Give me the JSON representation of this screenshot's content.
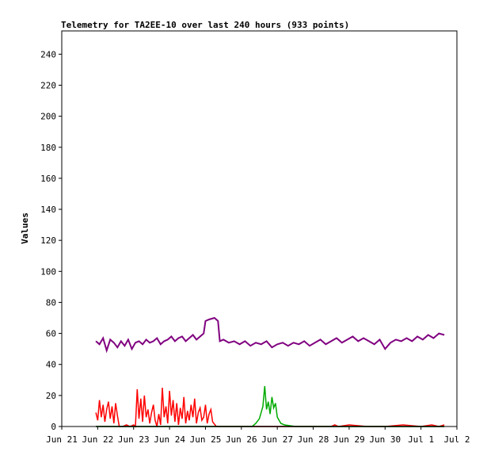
{
  "chart_data": {
    "type": "line",
    "title": "Telemetry for TA2EE-10 over last 240 hours (933 points)",
    "xlabel": "",
    "ylabel": "Values",
    "xlim": [
      0,
      11
    ],
    "ylim": [
      0,
      255
    ],
    "grid": false,
    "legend": "none",
    "x_ticks": [
      {
        "x": 0,
        "label": "Jun 21"
      },
      {
        "x": 1,
        "label": "Jun 22"
      },
      {
        "x": 2,
        "label": "Jun 23"
      },
      {
        "x": 3,
        "label": "Jun 24"
      },
      {
        "x": 4,
        "label": "Jun 25"
      },
      {
        "x": 5,
        "label": "Jun 26"
      },
      {
        "x": 6,
        "label": "Jun 27"
      },
      {
        "x": 7,
        "label": "Jun 28"
      },
      {
        "x": 8,
        "label": "Jun 29"
      },
      {
        "x": 9,
        "label": "Jun 30"
      },
      {
        "x": 10,
        "label": "Jul 1"
      },
      {
        "x": 11,
        "label": "Jul 2"
      }
    ],
    "y_ticks": [
      0,
      20,
      40,
      60,
      80,
      100,
      120,
      140,
      160,
      180,
      200,
      220,
      240
    ],
    "series": [
      {
        "color": "#800080",
        "x": [
          0.95,
          1.05,
          1.15,
          1.25,
          1.35,
          1.45,
          1.55,
          1.65,
          1.75,
          1.85,
          1.95,
          2.05,
          2.15,
          2.25,
          2.35,
          2.45,
          2.55,
          2.65,
          2.75,
          2.85,
          2.95,
          3.05,
          3.15,
          3.25,
          3.35,
          3.45,
          3.55,
          3.65,
          3.75,
          3.85,
          3.95,
          4.0,
          4.1,
          4.25,
          4.35,
          4.4,
          4.5,
          4.65,
          4.8,
          4.95,
          5.1,
          5.25,
          5.4,
          5.55,
          5.7,
          5.85,
          6.0,
          6.15,
          6.3,
          6.45,
          6.6,
          6.75,
          6.9,
          7.05,
          7.2,
          7.35,
          7.5,
          7.65,
          7.8,
          7.95,
          8.1,
          8.25,
          8.4,
          8.55,
          8.7,
          8.85,
          9.0,
          9.15,
          9.3,
          9.45,
          9.6,
          9.75,
          9.9,
          10.05,
          10.2,
          10.35,
          10.5,
          10.65
        ],
        "values": [
          55,
          53,
          57,
          49,
          56,
          54,
          51,
          55,
          52,
          56,
          50,
          54,
          55,
          53,
          56,
          54,
          55,
          57,
          53,
          55,
          56,
          58,
          55,
          57,
          58,
          55,
          57,
          59,
          56,
          58,
          60,
          68,
          69,
          70,
          68,
          55,
          56,
          54,
          55,
          53,
          55,
          52,
          54,
          53,
          55,
          51,
          53,
          54,
          52,
          54,
          53,
          55,
          52,
          54,
          56,
          53,
          55,
          57,
          54,
          56,
          58,
          55,
          57,
          55,
          53,
          56,
          50,
          54,
          56,
          55,
          57,
          55,
          58,
          56,
          59,
          57,
          60,
          59
        ]
      },
      {
        "color": "#ff0000",
        "x": [
          0.95,
          1.0,
          1.05,
          1.1,
          1.15,
          1.2,
          1.25,
          1.3,
          1.35,
          1.4,
          1.45,
          1.5,
          1.55,
          1.6,
          1.7,
          1.8,
          1.9,
          2.0,
          2.05,
          2.1,
          2.15,
          2.2,
          2.25,
          2.3,
          2.35,
          2.4,
          2.45,
          2.5,
          2.55,
          2.6,
          2.65,
          2.7,
          2.75,
          2.8,
          2.85,
          2.9,
          2.95,
          3.0,
          3.05,
          3.1,
          3.15,
          3.2,
          3.25,
          3.3,
          3.35,
          3.4,
          3.45,
          3.5,
          3.55,
          3.6,
          3.65,
          3.7,
          3.75,
          3.8,
          3.85,
          3.9,
          3.95,
          4.0,
          4.05,
          4.1,
          4.15,
          4.2,
          4.3,
          5.0,
          6.0,
          7.0,
          7.5,
          7.6,
          7.7,
          8.0,
          8.5,
          9.0,
          9.5,
          10.0,
          10.3,
          10.5,
          10.65
        ],
        "values": [
          9,
          4,
          17,
          6,
          14,
          3,
          11,
          16,
          5,
          13,
          2,
          15,
          7,
          0,
          0,
          1,
          0,
          1,
          0,
          24,
          5,
          18,
          3,
          20,
          6,
          11,
          2,
          9,
          14,
          4,
          0,
          8,
          1,
          25,
          6,
          13,
          2,
          23,
          7,
          17,
          3,
          15,
          1,
          12,
          5,
          19,
          2,
          10,
          4,
          14,
          6,
          18,
          2,
          9,
          12,
          4,
          6,
          14,
          2,
          8,
          11,
          3,
          0,
          0,
          0,
          0,
          0,
          1,
          0,
          1,
          0,
          0,
          1,
          0,
          1,
          0,
          1
        ]
      },
      {
        "color": "#00aa00",
        "x": [
          0.95,
          1.5,
          2.0,
          2.5,
          3.0,
          3.5,
          4.0,
          4.5,
          5.0,
          5.3,
          5.4,
          5.5,
          5.55,
          5.6,
          5.65,
          5.7,
          5.75,
          5.8,
          5.85,
          5.9,
          5.95,
          6.0,
          6.1,
          6.2,
          6.5,
          7.0,
          7.5,
          8.0,
          8.5,
          9.0,
          9.5,
          10.0,
          10.5,
          10.65
        ],
        "values": [
          0,
          0,
          0,
          0,
          0,
          0,
          0,
          0,
          0,
          0,
          2,
          5,
          9,
          13,
          26,
          11,
          16,
          8,
          19,
          12,
          15,
          6,
          2,
          1,
          0,
          0,
          0,
          0,
          0,
          0,
          0,
          0,
          0,
          0
        ]
      },
      {
        "color": "#000000",
        "x": [
          0.95,
          10.65
        ],
        "values": [
          0,
          0
        ]
      }
    ]
  }
}
